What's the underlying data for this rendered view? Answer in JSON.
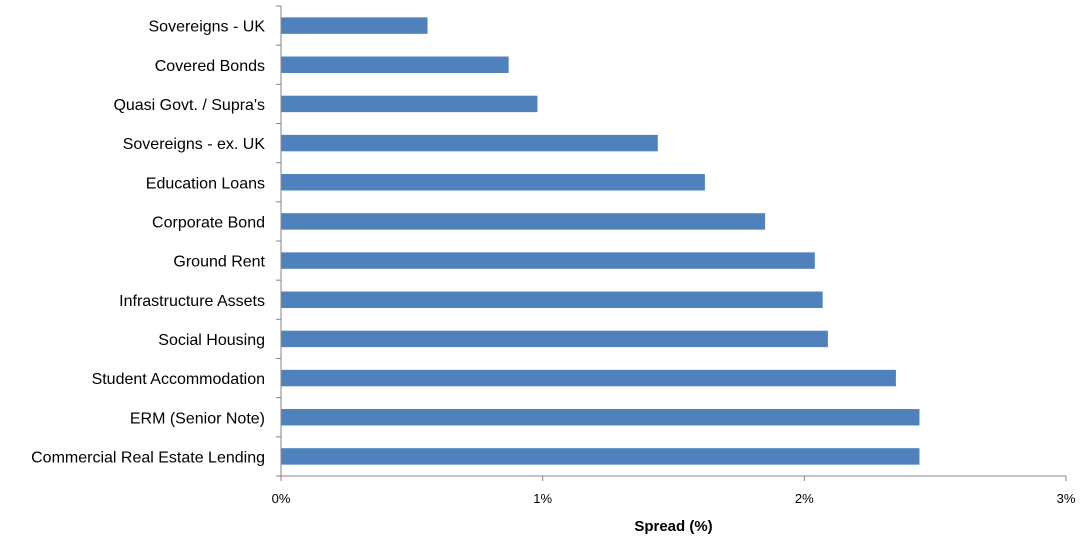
{
  "chart_data": {
    "type": "bar",
    "orientation": "horizontal",
    "categories": [
      "Sovereigns - UK",
      "Covered Bonds",
      "Quasi Govt. / Supra's",
      "Sovereigns - ex. UK",
      "Education Loans",
      "Corporate Bond",
      "Ground Rent",
      "Infrastructure Assets",
      "Social Housing",
      "Student Accommodation",
      "ERM (Senior Note)",
      "Commercial Real Estate Lending"
    ],
    "values": [
      0.56,
      0.87,
      0.98,
      1.44,
      1.62,
      1.85,
      2.04,
      2.07,
      2.09,
      2.35,
      2.44,
      2.44
    ],
    "xlabel": "Spread (%)",
    "ylabel": "",
    "xlim": [
      0,
      3
    ],
    "xticks": [
      0,
      1,
      2,
      3
    ],
    "xtick_labels": [
      "0%",
      "1%",
      "2%",
      "3%"
    ],
    "grid": false,
    "legend": "none",
    "bar_color": "#4f81bd"
  }
}
